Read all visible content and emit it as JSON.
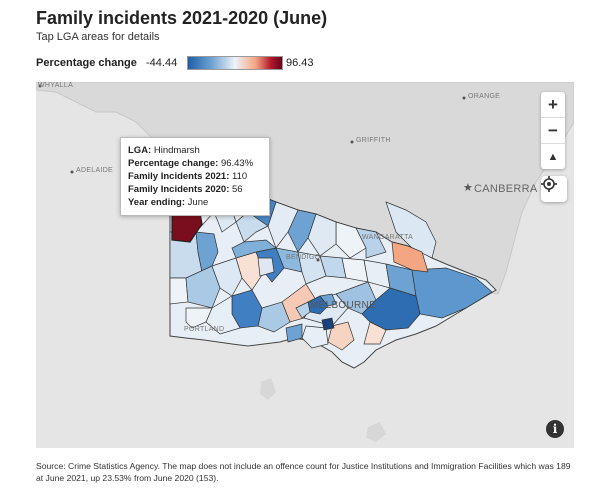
{
  "header": {
    "title": "Family incidents 2021-2020 (June)",
    "subtitle": "Tap LGA areas for details"
  },
  "legend": {
    "label": "Percentage change",
    "min": "-44.44",
    "max": "96.43"
  },
  "map": {
    "place_labels": [
      "WHYALLA",
      "ORANGE",
      "GRIFFITH",
      "ADELAIDE",
      "CANBERRA",
      "WANGARATTA",
      "BENDIGO",
      "MELBOURNE",
      "PORTLAND"
    ],
    "highlight_color": "#7a0e1e"
  },
  "tooltip": {
    "lga_label": "LGA:",
    "lga_value": "Hindmarsh",
    "pct_label": "Percentage change:",
    "pct_value": "96.43%",
    "fi2021_label": "Family Incidents 2021:",
    "fi2021_value": "110",
    "fi2020_label": "Family Incidents 2020:",
    "fi2020_value": "56",
    "year_label": "Year ending:",
    "year_value": "June"
  },
  "controls": {
    "zoom_in": "+",
    "zoom_out": "−",
    "compass": "▲",
    "info": "i"
  },
  "source": "Source: Crime Statistics Agency. The map does not include an offence count for Justice Institutions and Immigration Facilities which was 189 at June 2021, up 23.53% from June 2020 (153)."
}
